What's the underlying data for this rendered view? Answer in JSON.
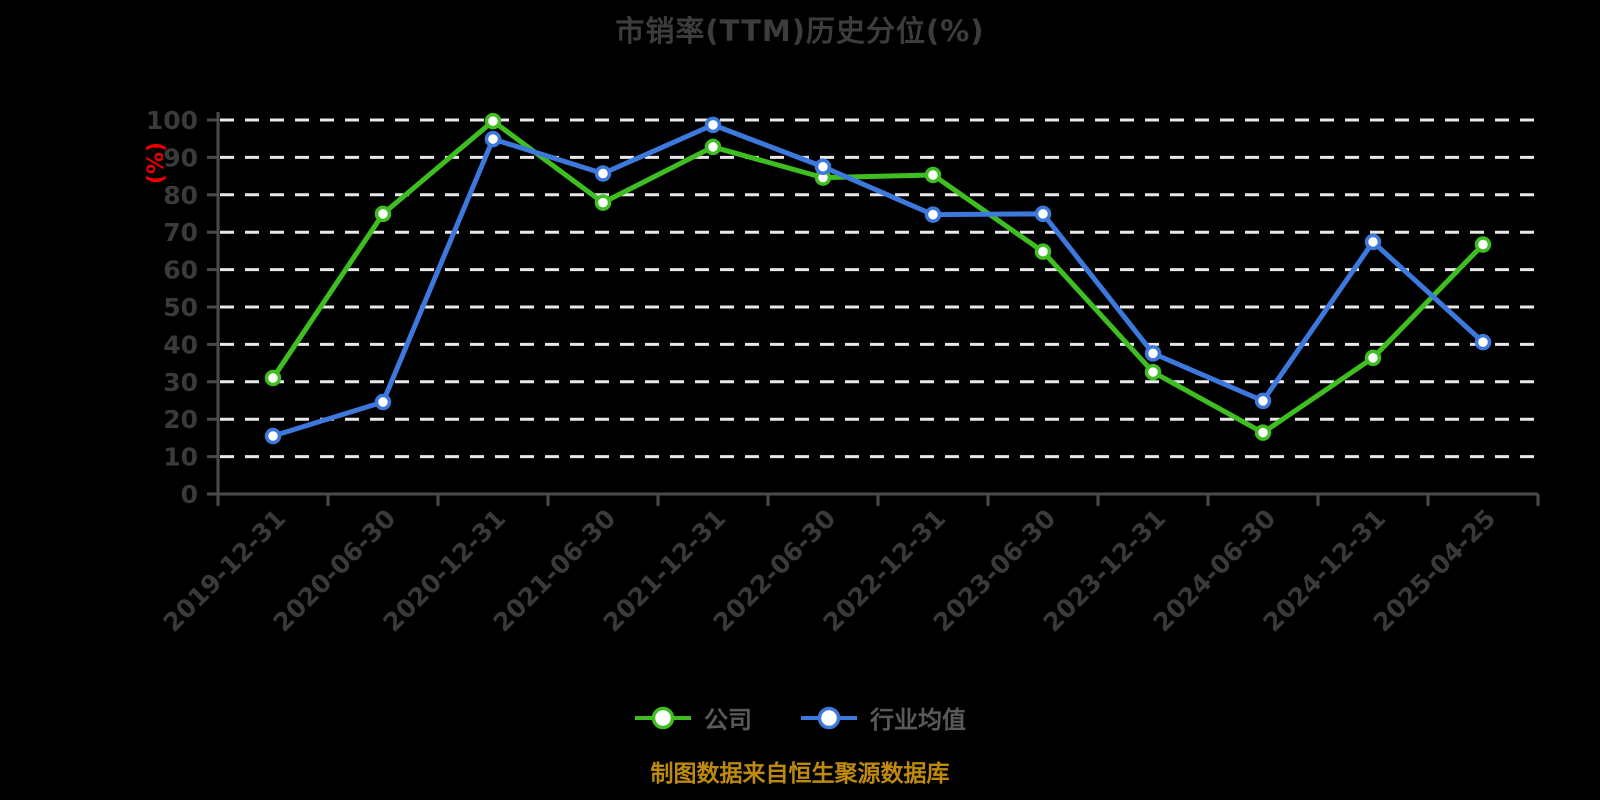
{
  "title": "市销率(TTM)历史分位(%)",
  "y_axis": {
    "unit_label": "(%)"
  },
  "footer_note": "制图数据来自恒生聚源数据库",
  "legend": {
    "items": [
      {
        "label": "公司",
        "slug": "company",
        "color": "#3FBE21"
      },
      {
        "label": "行业均值",
        "slug": "industry-average",
        "color": "#3D78DD"
      }
    ]
  },
  "colors": {
    "background": "#000000",
    "title": "#3C3C3C",
    "axis": "#4A4A4A",
    "tick_label": "#3A3A3A",
    "gridline": "#E8E8E8",
    "company": "#3FBE21",
    "industry": "#3D78DD",
    "legend_text": "#595959",
    "footer": "#BD8A0E",
    "y_unit_label": "#EB0000",
    "marker_fill": "#FFFFFF"
  },
  "chart_data": {
    "type": "line",
    "title": "市销率(TTM)历史分位(%)",
    "xlabel": "",
    "ylabel": "(%)",
    "ylim": [
      0,
      100
    ],
    "y_ticks": [
      0,
      10,
      20,
      30,
      40,
      50,
      60,
      70,
      80,
      90,
      100
    ],
    "grid": "horizontal dashed white lines",
    "legend_position": "bottom",
    "categories": [
      "2019-12-31",
      "2020-06-30",
      "2020-12-31",
      "2021-06-30",
      "2021-12-31",
      "2022-06-30",
      "2022-12-31",
      "2023-06-30",
      "2023-12-31",
      "2024-06-30",
      "2024-12-31",
      "2025-04-25"
    ],
    "series": [
      {
        "name": "公司",
        "slug": "company",
        "color": "#3FBE21",
        "values": [
          31.0,
          74.9,
          99.7,
          77.9,
          92.8,
          84.6,
          85.3,
          64.8,
          32.6,
          16.4,
          36.4,
          66.7
        ]
      },
      {
        "name": "行业均值",
        "slug": "industry-average",
        "color": "#3D78DD",
        "values": [
          15.5,
          24.6,
          94.9,
          85.7,
          98.7,
          87.5,
          74.7,
          74.9,
          37.6,
          24.9,
          67.4,
          40.6
        ]
      }
    ]
  }
}
